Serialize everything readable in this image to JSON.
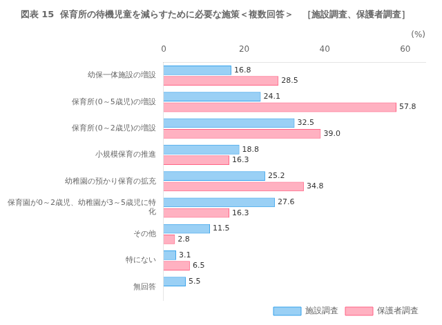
{
  "chart_data": {
    "type": "bar",
    "orientation": "horizontal",
    "title": "図表 15  保育所の待機児童を減らすために必要な施策＜複数回答＞　［施設調査、保護者調査］",
    "categories": [
      "幼保一体施設の増設",
      "保育所(0～5歳児)の増設",
      "保育所(0～2歳児)の増設",
      "小規模保育の推進",
      "幼稚園の預かり保育の拡充",
      "保育園が0～2歳児、幼稚園が3～5歳児に特\n化",
      "その他",
      "特にない",
      "無回答"
    ],
    "series": [
      {
        "name": "施設調査",
        "values": [
          16.8,
          24.1,
          32.5,
          18.8,
          25.2,
          27.6,
          11.5,
          3.1,
          5.5
        ],
        "value_labels": [
          "16.8",
          "24.1",
          "32.5",
          "18.8",
          "25.2",
          "27.6",
          "11.5",
          "3.1",
          "5.5"
        ]
      },
      {
        "name": "保護者調査",
        "values": [
          28.5,
          57.8,
          39.0,
          16.3,
          34.8,
          16.3,
          2.8,
          6.5,
          0.0
        ],
        "value_labels": [
          "28.5",
          "57.8",
          "39.0",
          "16.3",
          "34.8",
          "16.3",
          "2.8",
          "6.5",
          null
        ]
      }
    ],
    "x_label": "(%)",
    "xlim": [
      0,
      65
    ],
    "xticks": [
      0,
      20,
      40,
      60
    ],
    "grid": false,
    "legend": "lower right",
    "data_labels": true
  }
}
